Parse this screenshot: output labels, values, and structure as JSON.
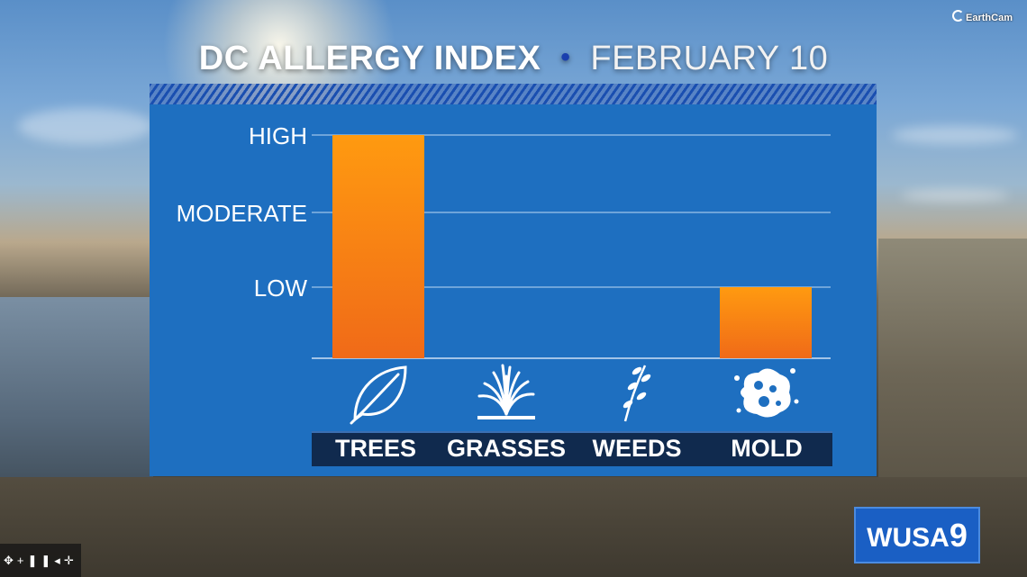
{
  "title": {
    "main": "DC ALLERGY INDEX",
    "separator": "•",
    "date": "FEBRUARY 10"
  },
  "watermark": "EarthCam",
  "station_logo": {
    "text": "WUSA",
    "number": "9"
  },
  "player_controls": [
    "move-icon",
    "zoom-icon",
    "pause-icon",
    "volume-icon",
    "fullscreen-icon"
  ],
  "colors": {
    "panel": "#1e6fc0",
    "bar_top": "#ff9a10",
    "bar_bottom": "#f06a18",
    "label_bar": "#102a4e",
    "title_bullet": "#1a3fae"
  },
  "chart_data": {
    "type": "bar",
    "categories": [
      "TREES",
      "GRASSES",
      "WEEDS",
      "MOLD"
    ],
    "levels": [
      "LOW",
      "MODERATE",
      "HIGH"
    ],
    "values": [
      3,
      0,
      0,
      1
    ],
    "value_labels": [
      "HIGH",
      "",
      "",
      "LOW"
    ],
    "ylim": [
      0,
      3
    ],
    "category_icons": [
      "leaf-icon",
      "grass-icon",
      "weed-sprig-icon",
      "mold-spore-icon"
    ],
    "grid": true
  }
}
